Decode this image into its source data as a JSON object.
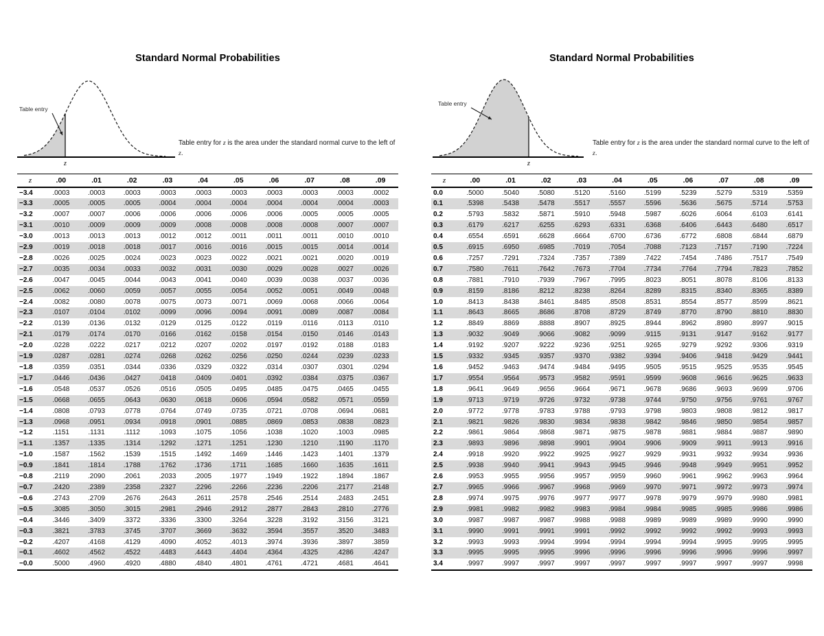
{
  "colors": {
    "stripe": "#d9d9d9",
    "curve_shade": "#d2d2d2",
    "line": "#000000"
  },
  "panels": [
    {
      "title": "Standard Normal Probabilities",
      "diagram": {
        "annotation": "Table entry",
        "axis_label": "z",
        "shaded_region": "left tail to the left of z"
      },
      "caption_parts": [
        {
          "text": "Table entry for "
        },
        {
          "text": "z",
          "italic": true
        },
        {
          "text": " is the area under the standard normal curve to the left of "
        },
        {
          "text": "z",
          "italic": true
        },
        {
          "text": "."
        }
      ],
      "table": {
        "columns": [
          "z",
          ".00",
          ".01",
          ".02",
          ".03",
          ".04",
          ".05",
          ".06",
          ".07",
          ".08",
          ".09"
        ],
        "rows": [
          [
            "−3.4",
            ".0003",
            ".0003",
            ".0003",
            ".0003",
            ".0003",
            ".0003",
            ".0003",
            ".0003",
            ".0003",
            ".0002"
          ],
          [
            "−3.3",
            ".0005",
            ".0005",
            ".0005",
            ".0004",
            ".0004",
            ".0004",
            ".0004",
            ".0004",
            ".0004",
            ".0003"
          ],
          [
            "−3.2",
            ".0007",
            ".0007",
            ".0006",
            ".0006",
            ".0006",
            ".0006",
            ".0006",
            ".0005",
            ".0005",
            ".0005"
          ],
          [
            "−3.1",
            ".0010",
            ".0009",
            ".0009",
            ".0009",
            ".0008",
            ".0008",
            ".0008",
            ".0008",
            ".0007",
            ".0007"
          ],
          [
            "−3.0",
            ".0013",
            ".0013",
            ".0013",
            ".0012",
            ".0012",
            ".0011",
            ".0011",
            ".0011",
            ".0010",
            ".0010"
          ],
          [
            "−2.9",
            ".0019",
            ".0018",
            ".0018",
            ".0017",
            ".0016",
            ".0016",
            ".0015",
            ".0015",
            ".0014",
            ".0014"
          ],
          [
            "−2.8",
            ".0026",
            ".0025",
            ".0024",
            ".0023",
            ".0023",
            ".0022",
            ".0021",
            ".0021",
            ".0020",
            ".0019"
          ],
          [
            "−2.7",
            ".0035",
            ".0034",
            ".0033",
            ".0032",
            ".0031",
            ".0030",
            ".0029",
            ".0028",
            ".0027",
            ".0026"
          ],
          [
            "−2.6",
            ".0047",
            ".0045",
            ".0044",
            ".0043",
            ".0041",
            ".0040",
            ".0039",
            ".0038",
            ".0037",
            ".0036"
          ],
          [
            "−2.5",
            ".0062",
            ".0060",
            ".0059",
            ".0057",
            ".0055",
            ".0054",
            ".0052",
            ".0051",
            ".0049",
            ".0048"
          ],
          [
            "−2.4",
            ".0082",
            ".0080",
            ".0078",
            ".0075",
            ".0073",
            ".0071",
            ".0069",
            ".0068",
            ".0066",
            ".0064"
          ],
          [
            "−2.3",
            ".0107",
            ".0104",
            ".0102",
            ".0099",
            ".0096",
            ".0094",
            ".0091",
            ".0089",
            ".0087",
            ".0084"
          ],
          [
            "−2.2",
            ".0139",
            ".0136",
            ".0132",
            ".0129",
            ".0125",
            ".0122",
            ".0119",
            ".0116",
            ".0113",
            ".0110"
          ],
          [
            "−2.1",
            ".0179",
            ".0174",
            ".0170",
            ".0166",
            ".0162",
            ".0158",
            ".0154",
            ".0150",
            ".0146",
            ".0143"
          ],
          [
            "−2.0",
            ".0228",
            ".0222",
            ".0217",
            ".0212",
            ".0207",
            ".0202",
            ".0197",
            ".0192",
            ".0188",
            ".0183"
          ],
          [
            "−1.9",
            ".0287",
            ".0281",
            ".0274",
            ".0268",
            ".0262",
            ".0256",
            ".0250",
            ".0244",
            ".0239",
            ".0233"
          ],
          [
            "−1.8",
            ".0359",
            ".0351",
            ".0344",
            ".0336",
            ".0329",
            ".0322",
            ".0314",
            ".0307",
            ".0301",
            ".0294"
          ],
          [
            "−1.7",
            ".0446",
            ".0436",
            ".0427",
            ".0418",
            ".0409",
            ".0401",
            ".0392",
            ".0384",
            ".0375",
            ".0367"
          ],
          [
            "−1.6",
            ".0548",
            ".0537",
            ".0526",
            ".0516",
            ".0505",
            ".0495",
            ".0485",
            ".0475",
            ".0465",
            ".0455"
          ],
          [
            "−1.5",
            ".0668",
            ".0655",
            ".0643",
            ".0630",
            ".0618",
            ".0606",
            ".0594",
            ".0582",
            ".0571",
            ".0559"
          ],
          [
            "−1.4",
            ".0808",
            ".0793",
            ".0778",
            ".0764",
            ".0749",
            ".0735",
            ".0721",
            ".0708",
            ".0694",
            ".0681"
          ],
          [
            "−1.3",
            ".0968",
            ".0951",
            ".0934",
            ".0918",
            ".0901",
            ".0885",
            ".0869",
            ".0853",
            ".0838",
            ".0823"
          ],
          [
            "−1.2",
            ".1151",
            ".1131",
            ".1112",
            ".1093",
            ".1075",
            ".1056",
            ".1038",
            ".1020",
            ".1003",
            ".0985"
          ],
          [
            "−1.1",
            ".1357",
            ".1335",
            ".1314",
            ".1292",
            ".1271",
            ".1251",
            ".1230",
            ".1210",
            ".1190",
            ".1170"
          ],
          [
            "−1.0",
            ".1587",
            ".1562",
            ".1539",
            ".1515",
            ".1492",
            ".1469",
            ".1446",
            ".1423",
            ".1401",
            ".1379"
          ],
          [
            "−0.9",
            ".1841",
            ".1814",
            ".1788",
            ".1762",
            ".1736",
            ".1711",
            ".1685",
            ".1660",
            ".1635",
            ".1611"
          ],
          [
            "−0.8",
            ".2119",
            ".2090",
            ".2061",
            ".2033",
            ".2005",
            ".1977",
            ".1949",
            ".1922",
            ".1894",
            ".1867"
          ],
          [
            "−0.7",
            ".2420",
            ".2389",
            ".2358",
            ".2327",
            ".2296",
            ".2266",
            ".2236",
            ".2206",
            ".2177",
            ".2148"
          ],
          [
            "−0.6",
            ".2743",
            ".2709",
            ".2676",
            ".2643",
            ".2611",
            ".2578",
            ".2546",
            ".2514",
            ".2483",
            ".2451"
          ],
          [
            "−0.5",
            ".3085",
            ".3050",
            ".3015",
            ".2981",
            ".2946",
            ".2912",
            ".2877",
            ".2843",
            ".2810",
            ".2776"
          ],
          [
            "−0.4",
            ".3446",
            ".3409",
            ".3372",
            ".3336",
            ".3300",
            ".3264",
            ".3228",
            ".3192",
            ".3156",
            ".3121"
          ],
          [
            "−0.3",
            ".3821",
            ".3783",
            ".3745",
            ".3707",
            ".3669",
            ".3632",
            ".3594",
            ".3557",
            ".3520",
            ".3483"
          ],
          [
            "−0.2",
            ".4207",
            ".4168",
            ".4129",
            ".4090",
            ".4052",
            ".4013",
            ".3974",
            ".3936",
            ".3897",
            ".3859"
          ],
          [
            "−0.1",
            ".4602",
            ".4562",
            ".4522",
            ".4483",
            ".4443",
            ".4404",
            ".4364",
            ".4325",
            ".4286",
            ".4247"
          ],
          [
            "−0.0",
            ".5000",
            ".4960",
            ".4920",
            ".4880",
            ".4840",
            ".4801",
            ".4761",
            ".4721",
            ".4681",
            ".4641"
          ]
        ]
      }
    },
    {
      "title": "Standard Normal Probabilities",
      "diagram": {
        "annotation": "Table entry",
        "axis_label": "z",
        "shaded_region": "area to the left of z"
      },
      "caption_parts": [
        {
          "text": "Table entry for "
        },
        {
          "text": "z",
          "italic": true
        },
        {
          "text": " is the area under the standard normal curve to the left of "
        },
        {
          "text": "z",
          "italic": true
        },
        {
          "text": "."
        }
      ],
      "table": {
        "columns": [
          "z",
          ".00",
          ".01",
          ".02",
          ".03",
          ".04",
          ".05",
          ".06",
          ".07",
          ".08",
          ".09"
        ],
        "rows": [
          [
            "0.0",
            ".5000",
            ".5040",
            ".5080",
            ".5120",
            ".5160",
            ".5199",
            ".5239",
            ".5279",
            ".5319",
            ".5359"
          ],
          [
            "0.1",
            ".5398",
            ".5438",
            ".5478",
            ".5517",
            ".5557",
            ".5596",
            ".5636",
            ".5675",
            ".5714",
            ".5753"
          ],
          [
            "0.2",
            ".5793",
            ".5832",
            ".5871",
            ".5910",
            ".5948",
            ".5987",
            ".6026",
            ".6064",
            ".6103",
            ".6141"
          ],
          [
            "0.3",
            ".6179",
            ".6217",
            ".6255",
            ".6293",
            ".6331",
            ".6368",
            ".6406",
            ".6443",
            ".6480",
            ".6517"
          ],
          [
            "0.4",
            ".6554",
            ".6591",
            ".6628",
            ".6664",
            ".6700",
            ".6736",
            ".6772",
            ".6808",
            ".6844",
            ".6879"
          ],
          [
            "0.5",
            ".6915",
            ".6950",
            ".6985",
            ".7019",
            ".7054",
            ".7088",
            ".7123",
            ".7157",
            ".7190",
            ".7224"
          ],
          [
            "0.6",
            ".7257",
            ".7291",
            ".7324",
            ".7357",
            ".7389",
            ".7422",
            ".7454",
            ".7486",
            ".7517",
            ".7549"
          ],
          [
            "0.7",
            ".7580",
            ".7611",
            ".7642",
            ".7673",
            ".7704",
            ".7734",
            ".7764",
            ".7794",
            ".7823",
            ".7852"
          ],
          [
            "0.8",
            ".7881",
            ".7910",
            ".7939",
            ".7967",
            ".7995",
            ".8023",
            ".8051",
            ".8078",
            ".8106",
            ".8133"
          ],
          [
            "0.9",
            ".8159",
            ".8186",
            ".8212",
            ".8238",
            ".8264",
            ".8289",
            ".8315",
            ".8340",
            ".8365",
            ".8389"
          ],
          [
            "1.0",
            ".8413",
            ".8438",
            ".8461",
            ".8485",
            ".8508",
            ".8531",
            ".8554",
            ".8577",
            ".8599",
            ".8621"
          ],
          [
            "1.1",
            ".8643",
            ".8665",
            ".8686",
            ".8708",
            ".8729",
            ".8749",
            ".8770",
            ".8790",
            ".8810",
            ".8830"
          ],
          [
            "1.2",
            ".8849",
            ".8869",
            ".8888",
            ".8907",
            ".8925",
            ".8944",
            ".8962",
            ".8980",
            ".8997",
            ".9015"
          ],
          [
            "1.3",
            ".9032",
            ".9049",
            ".9066",
            ".9082",
            ".9099",
            ".9115",
            ".9131",
            ".9147",
            ".9162",
            ".9177"
          ],
          [
            "1.4",
            ".9192",
            ".9207",
            ".9222",
            ".9236",
            ".9251",
            ".9265",
            ".9279",
            ".9292",
            ".9306",
            ".9319"
          ],
          [
            "1.5",
            ".9332",
            ".9345",
            ".9357",
            ".9370",
            ".9382",
            ".9394",
            ".9406",
            ".9418",
            ".9429",
            ".9441"
          ],
          [
            "1.6",
            ".9452",
            ".9463",
            ".9474",
            ".9484",
            ".9495",
            ".9505",
            ".9515",
            ".9525",
            ".9535",
            ".9545"
          ],
          [
            "1.7",
            ".9554",
            ".9564",
            ".9573",
            ".9582",
            ".9591",
            ".9599",
            ".9608",
            ".9616",
            ".9625",
            ".9633"
          ],
          [
            "1.8",
            ".9641",
            ".9649",
            ".9656",
            ".9664",
            ".9671",
            ".9678",
            ".9686",
            ".9693",
            ".9699",
            ".9706"
          ],
          [
            "1.9",
            ".9713",
            ".9719",
            ".9726",
            ".9732",
            ".9738",
            ".9744",
            ".9750",
            ".9756",
            ".9761",
            ".9767"
          ],
          [
            "2.0",
            ".9772",
            ".9778",
            ".9783",
            ".9788",
            ".9793",
            ".9798",
            ".9803",
            ".9808",
            ".9812",
            ".9817"
          ],
          [
            "2.1",
            ".9821",
            ".9826",
            ".9830",
            ".9834",
            ".9838",
            ".9842",
            ".9846",
            ".9850",
            ".9854",
            ".9857"
          ],
          [
            "2.2",
            ".9861",
            ".9864",
            ".9868",
            ".9871",
            ".9875",
            ".9878",
            ".9881",
            ".9884",
            ".9887",
            ".9890"
          ],
          [
            "2.3",
            ".9893",
            ".9896",
            ".9898",
            ".9901",
            ".9904",
            ".9906",
            ".9909",
            ".9911",
            ".9913",
            ".9916"
          ],
          [
            "2.4",
            ".9918",
            ".9920",
            ".9922",
            ".9925",
            ".9927",
            ".9929",
            ".9931",
            ".9932",
            ".9934",
            ".9936"
          ],
          [
            "2.5",
            ".9938",
            ".9940",
            ".9941",
            ".9943",
            ".9945",
            ".9946",
            ".9948",
            ".9949",
            ".9951",
            ".9952"
          ],
          [
            "2.6",
            ".9953",
            ".9955",
            ".9956",
            ".9957",
            ".9959",
            ".9960",
            ".9961",
            ".9962",
            ".9963",
            ".9964"
          ],
          [
            "2.7",
            ".9965",
            ".9966",
            ".9967",
            ".9968",
            ".9969",
            ".9970",
            ".9971",
            ".9972",
            ".9973",
            ".9974"
          ],
          [
            "2.8",
            ".9974",
            ".9975",
            ".9976",
            ".9977",
            ".9977",
            ".9978",
            ".9979",
            ".9979",
            ".9980",
            ".9981"
          ],
          [
            "2.9",
            ".9981",
            ".9982",
            ".9982",
            ".9983",
            ".9984",
            ".9984",
            ".9985",
            ".9985",
            ".9986",
            ".9986"
          ],
          [
            "3.0",
            ".9987",
            ".9987",
            ".9987",
            ".9988",
            ".9988",
            ".9989",
            ".9989",
            ".9989",
            ".9990",
            ".9990"
          ],
          [
            "3.1",
            ".9990",
            ".9991",
            ".9991",
            ".9991",
            ".9992",
            ".9992",
            ".9992",
            ".9992",
            ".9993",
            ".9993"
          ],
          [
            "3.2",
            ".9993",
            ".9993",
            ".9994",
            ".9994",
            ".9994",
            ".9994",
            ".9994",
            ".9995",
            ".9995",
            ".9995"
          ],
          [
            "3.3",
            ".9995",
            ".9995",
            ".9995",
            ".9996",
            ".9996",
            ".9996",
            ".9996",
            ".9996",
            ".9996",
            ".9997"
          ],
          [
            "3.4",
            ".9997",
            ".9997",
            ".9997",
            ".9997",
            ".9997",
            ".9997",
            ".9997",
            ".9997",
            ".9997",
            ".9998"
          ]
        ]
      }
    }
  ]
}
